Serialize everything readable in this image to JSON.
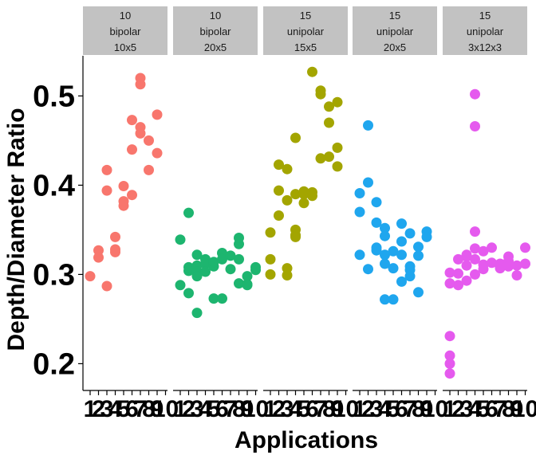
{
  "chart_data": {
    "type": "scatter",
    "title": "",
    "xlabel": "Applications",
    "ylabel": "Depth/Diameter Ratio",
    "ylim": [
      0.17,
      0.545
    ],
    "yticks": [
      0.2,
      0.3,
      0.4,
      0.5
    ],
    "ytick_labels": [
      "0.2",
      "0.3",
      "0.4",
      "0.5"
    ],
    "xtick_labels": [
      "1",
      "2",
      "3",
      "4",
      "5",
      "6",
      "7",
      "8",
      "9",
      "10"
    ],
    "grid": false,
    "legend": "none",
    "facets": [
      {
        "label": [
          "10",
          "bipolar",
          "10x5"
        ],
        "color": "#F8766D",
        "points": [
          [
            1,
            0.298
          ],
          [
            2,
            0.327
          ],
          [
            2,
            0.319
          ],
          [
            3,
            0.417
          ],
          [
            3,
            0.394
          ],
          [
            3,
            0.287
          ],
          [
            4,
            0.342
          ],
          [
            4,
            0.328
          ],
          [
            4,
            0.325
          ],
          [
            5,
            0.399
          ],
          [
            5,
            0.382
          ],
          [
            5,
            0.377
          ],
          [
            6,
            0.389
          ],
          [
            6,
            0.473
          ],
          [
            6,
            0.44
          ],
          [
            7,
            0.52
          ],
          [
            7,
            0.513
          ],
          [
            7,
            0.465
          ],
          [
            7,
            0.458
          ],
          [
            8,
            0.417
          ],
          [
            8,
            0.45
          ],
          [
            9,
            0.479
          ],
          [
            9,
            0.436
          ]
        ]
      },
      {
        "label": [
          "10",
          "bipolar",
          "20x5"
        ],
        "color": "#1DB56F",
        "points": [
          [
            1,
            0.339
          ],
          [
            1,
            0.288
          ],
          [
            2,
            0.369
          ],
          [
            2,
            0.304
          ],
          [
            2,
            0.308
          ],
          [
            2,
            0.279
          ],
          [
            3,
            0.257
          ],
          [
            3,
            0.322
          ],
          [
            3,
            0.31
          ],
          [
            3,
            0.303
          ],
          [
            3,
            0.298
          ],
          [
            4,
            0.317
          ],
          [
            4,
            0.312
          ],
          [
            4,
            0.303
          ],
          [
            5,
            0.309
          ],
          [
            5,
            0.314
          ],
          [
            5,
            0.273
          ],
          [
            6,
            0.324
          ],
          [
            6,
            0.317
          ],
          [
            6,
            0.273
          ],
          [
            7,
            0.306
          ],
          [
            7,
            0.321
          ],
          [
            8,
            0.317
          ],
          [
            8,
            0.29
          ],
          [
            8,
            0.334
          ],
          [
            8,
            0.341
          ],
          [
            9,
            0.289
          ],
          [
            9,
            0.288
          ],
          [
            9,
            0.298
          ],
          [
            10,
            0.305
          ],
          [
            10,
            0.308
          ]
        ]
      },
      {
        "label": [
          "15",
          "unipolar",
          "15x5"
        ],
        "color": "#A3A500",
        "points": [
          [
            1,
            0.347
          ],
          [
            1,
            0.317
          ],
          [
            1,
            0.3
          ],
          [
            2,
            0.366
          ],
          [
            2,
            0.423
          ],
          [
            2,
            0.394
          ],
          [
            3,
            0.418
          ],
          [
            3,
            0.383
          ],
          [
            3,
            0.307
          ],
          [
            3,
            0.299
          ],
          [
            4,
            0.453
          ],
          [
            4,
            0.39
          ],
          [
            4,
            0.35
          ],
          [
            4,
            0.344
          ],
          [
            4,
            0.342
          ],
          [
            5,
            0.393
          ],
          [
            5,
            0.39
          ],
          [
            5,
            0.38
          ],
          [
            6,
            0.392
          ],
          [
            6,
            0.388
          ],
          [
            6,
            0.527
          ],
          [
            7,
            0.502
          ],
          [
            7,
            0.506
          ],
          [
            7,
            0.43
          ],
          [
            8,
            0.488
          ],
          [
            8,
            0.47
          ],
          [
            8,
            0.432
          ],
          [
            9,
            0.493
          ],
          [
            9,
            0.442
          ],
          [
            9,
            0.421
          ]
        ]
      },
      {
        "label": [
          "15",
          "unipolar",
          "20x5"
        ],
        "color": "#1FA6EE",
        "points": [
          [
            1,
            0.37
          ],
          [
            1,
            0.391
          ],
          [
            1,
            0.322
          ],
          [
            2,
            0.467
          ],
          [
            2,
            0.403
          ],
          [
            2,
            0.306
          ],
          [
            3,
            0.33
          ],
          [
            3,
            0.327
          ],
          [
            3,
            0.381
          ],
          [
            3,
            0.358
          ],
          [
            4,
            0.352
          ],
          [
            4,
            0.343
          ],
          [
            4,
            0.312
          ],
          [
            4,
            0.322
          ],
          [
            4,
            0.272
          ],
          [
            5,
            0.326
          ],
          [
            5,
            0.272
          ],
          [
            5,
            0.307
          ],
          [
            6,
            0.322
          ],
          [
            6,
            0.357
          ],
          [
            6,
            0.337
          ],
          [
            6,
            0.292
          ],
          [
            7,
            0.346
          ],
          [
            7,
            0.309
          ],
          [
            7,
            0.305
          ],
          [
            7,
            0.298
          ],
          [
            8,
            0.28
          ],
          [
            8,
            0.331
          ],
          [
            8,
            0.321
          ],
          [
            9,
            0.348
          ],
          [
            9,
            0.342
          ]
        ]
      },
      {
        "label": [
          "15",
          "unipolar",
          "3x12x3"
        ],
        "color": "#E55AEE",
        "points": [
          [
            1,
            0.2
          ],
          [
            1,
            0.189
          ],
          [
            1,
            0.209
          ],
          [
            1,
            0.231
          ],
          [
            1,
            0.302
          ],
          [
            1,
            0.29
          ],
          [
            2,
            0.317
          ],
          [
            2,
            0.301
          ],
          [
            2,
            0.288
          ],
          [
            3,
            0.322
          ],
          [
            3,
            0.32
          ],
          [
            3,
            0.31
          ],
          [
            3,
            0.293
          ],
          [
            4,
            0.317
          ],
          [
            4,
            0.3
          ],
          [
            4,
            0.502
          ],
          [
            4,
            0.466
          ],
          [
            4,
            0.348
          ],
          [
            4,
            0.329
          ],
          [
            5,
            0.326
          ],
          [
            5,
            0.311
          ],
          [
            5,
            0.306
          ],
          [
            6,
            0.33
          ],
          [
            6,
            0.313
          ],
          [
            7,
            0.309
          ],
          [
            7,
            0.312
          ],
          [
            7,
            0.307
          ],
          [
            8,
            0.315
          ],
          [
            8,
            0.32
          ],
          [
            8,
            0.309
          ],
          [
            9,
            0.31
          ],
          [
            9,
            0.299
          ],
          [
            10,
            0.33
          ],
          [
            10,
            0.312
          ]
        ]
      }
    ]
  }
}
